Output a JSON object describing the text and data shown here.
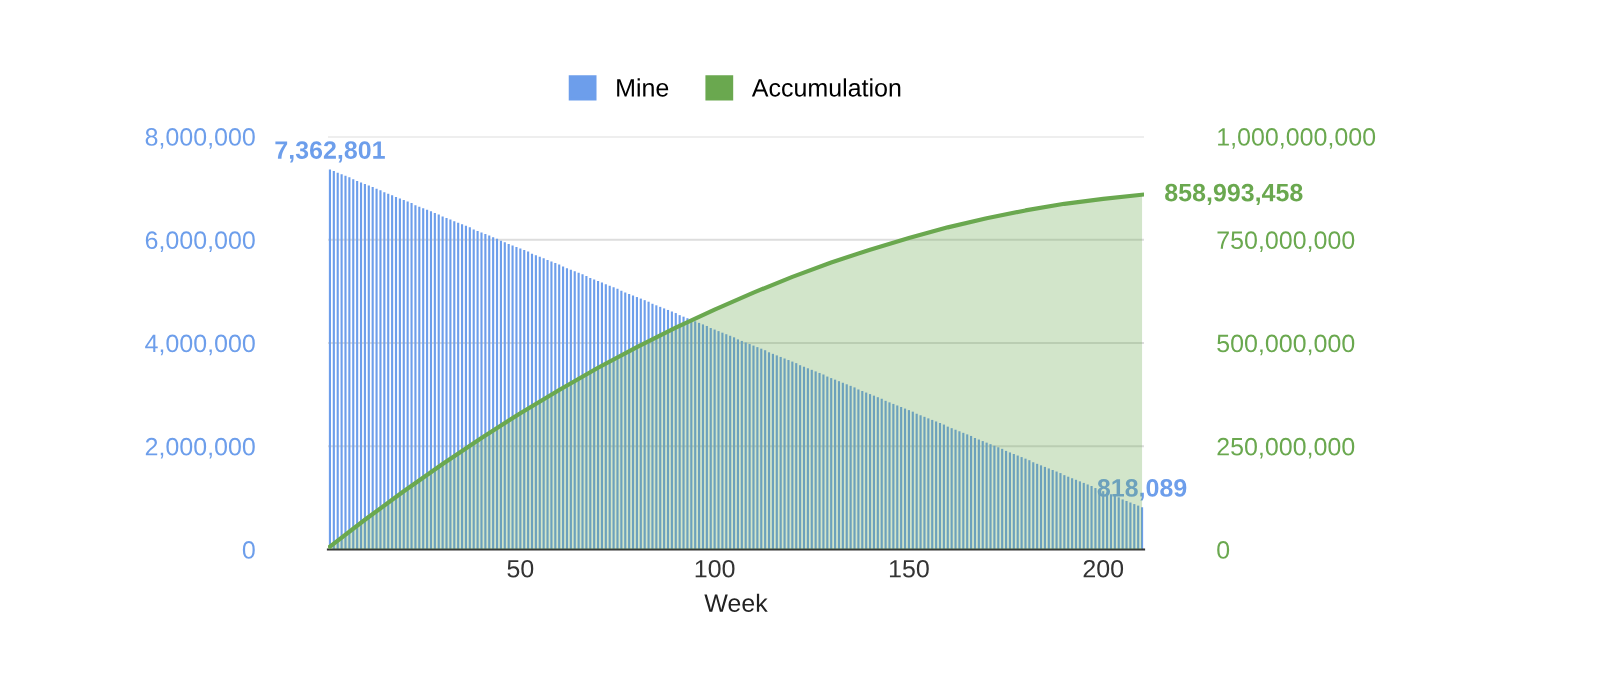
{
  "chart_data": {
    "type": "bar",
    "xlabel": "Week",
    "legend": "top",
    "grid": "y",
    "xlim": [
      0.5,
      210.5
    ],
    "xticks": [
      50,
      100,
      150,
      200
    ],
    "ylim": [
      0,
      8000000
    ],
    "yticks": [
      0,
      {
        "value": 2000000,
        "label": "2,000,000"
      },
      {
        "value": 4000000,
        "label": "4,000,000"
      },
      {
        "value": 6000000,
        "label": "6,000,000"
      },
      {
        "value": 8000000,
        "label": "8,000,000"
      }
    ],
    "y2lim": [
      0,
      1000000000
    ],
    "y2ticks": [
      0,
      {
        "value": 250000000,
        "label": "250,000,000"
      },
      {
        "value": 500000000,
        "label": "500,000,000"
      },
      {
        "value": 750000000,
        "label": "750,000,000"
      },
      {
        "value": 1000000000,
        "label": "1,000,000,000"
      }
    ],
    "series": [
      {
        "name": "Mine",
        "color": "#6d9eeb",
        "x": [
          1,
          2,
          3,
          4,
          5,
          6,
          7,
          8,
          9,
          10,
          11,
          12,
          13,
          14,
          15,
          16,
          17,
          18,
          19,
          20,
          21,
          22,
          23,
          24,
          25,
          26,
          27,
          28,
          29,
          30,
          31,
          32,
          33,
          34,
          35,
          36,
          37,
          38,
          39,
          40,
          41,
          42,
          43,
          44,
          45,
          46,
          47,
          48,
          49,
          50,
          51,
          52,
          53,
          54,
          55,
          56,
          57,
          58,
          59,
          60,
          61,
          62,
          63,
          64,
          65,
          66,
          67,
          68,
          69,
          70,
          71,
          72,
          73,
          74,
          75,
          76,
          77,
          78,
          79,
          80,
          81,
          82,
          83,
          84,
          85,
          86,
          87,
          88,
          89,
          90,
          91,
          92,
          93,
          94,
          95,
          96,
          97,
          98,
          99,
          100,
          101,
          102,
          103,
          104,
          105,
          106,
          107,
          108,
          109,
          110,
          111,
          112,
          113,
          114,
          115,
          116,
          117,
          118,
          119,
          120,
          121,
          122,
          123,
          124,
          125,
          126,
          127,
          128,
          129,
          130,
          131,
          132,
          133,
          134,
          135,
          136,
          137,
          138,
          139,
          140,
          141,
          142,
          143,
          144,
          145,
          146,
          147,
          148,
          149,
          150,
          151,
          152,
          153,
          154,
          155,
          156,
          157,
          158,
          159,
          160,
          161,
          162,
          163,
          164,
          165,
          166,
          167,
          168,
          169,
          170,
          171,
          172,
          173,
          174,
          175,
          176,
          177,
          178,
          179,
          180,
          181,
          182,
          183,
          184,
          185,
          186,
          187,
          188,
          189,
          190,
          191,
          192,
          193,
          194,
          195,
          196,
          197,
          198,
          199,
          200,
          201,
          202,
          203,
          204,
          205,
          206,
          207,
          208,
          209,
          210
        ],
        "values": [
          7362801,
          7330000,
          7300000,
          7270000,
          7240000,
          7210000,
          7170000,
          7140000,
          7110000,
          7080000,
          7050000,
          7020000,
          6990000,
          6960000,
          6920000,
          6890000,
          6860000,
          6830000,
          6800000,
          6770000,
          6740000,
          6710000,
          6670000,
          6640000,
          6610000,
          6580000,
          6550000,
          6520000,
          6490000,
          6450000,
          6420000,
          6390000,
          6360000,
          6330000,
          6300000,
          6270000,
          6240000,
          6200000,
          6170000,
          6140000,
          6110000,
          6080000,
          6050000,
          6020000,
          5980000,
          5950000,
          5920000,
          5890000,
          5860000,
          5830000,
          5800000,
          5770000,
          5730000,
          5700000,
          5670000,
          5640000,
          5610000,
          5580000,
          5550000,
          5520000,
          5480000,
          5450000,
          5420000,
          5390000,
          5360000,
          5330000,
          5300000,
          5260000,
          5230000,
          5200000,
          5170000,
          5140000,
          5110000,
          5080000,
          5050000,
          5010000,
          4980000,
          4950000,
          4920000,
          4890000,
          4860000,
          4830000,
          4800000,
          4760000,
          4730000,
          4700000,
          4670000,
          4640000,
          4610000,
          4580000,
          4540000,
          4510000,
          4480000,
          4450000,
          4420000,
          4390000,
          4360000,
          4330000,
          4290000,
          4260000,
          4230000,
          4200000,
          4170000,
          4140000,
          4110000,
          4070000,
          4040000,
          4010000,
          3980000,
          3950000,
          3920000,
          3890000,
          3860000,
          3820000,
          3790000,
          3760000,
          3730000,
          3700000,
          3670000,
          3640000,
          3610000,
          3570000,
          3540000,
          3510000,
          3480000,
          3450000,
          3420000,
          3390000,
          3350000,
          3320000,
          3290000,
          3260000,
          3230000,
          3200000,
          3170000,
          3140000,
          3100000,
          3070000,
          3040000,
          3010000,
          2980000,
          2950000,
          2920000,
          2880000,
          2850000,
          2820000,
          2790000,
          2760000,
          2730000,
          2700000,
          2670000,
          2630000,
          2600000,
          2570000,
          2540000,
          2510000,
          2480000,
          2450000,
          2420000,
          2380000,
          2350000,
          2320000,
          2290000,
          2260000,
          2230000,
          2200000,
          2160000,
          2130000,
          2100000,
          2070000,
          2040000,
          2010000,
          1980000,
          1950000,
          1910000,
          1880000,
          1850000,
          1820000,
          1790000,
          1760000,
          1730000,
          1690000,
          1660000,
          1630000,
          1600000,
          1570000,
          1540000,
          1510000,
          1480000,
          1440000,
          1410000,
          1380000,
          1350000,
          1320000,
          1290000,
          1260000,
          1230000,
          1190000,
          1160000,
          1130000,
          1100000,
          1070000,
          1040000,
          1010000,
          970000,
          940000,
          910000,
          880000,
          850000,
          818089
        ],
        "value_labels": [
          "7,362,801",
          null,
          null,
          null,
          null,
          null,
          null,
          null,
          null,
          null,
          null,
          null,
          null,
          null,
          null,
          null,
          null,
          null,
          null,
          null,
          null,
          null,
          null,
          null,
          null,
          null,
          null,
          null,
          null,
          null,
          null,
          null,
          null,
          null,
          null,
          null,
          null,
          null,
          null,
          null,
          null,
          null,
          null,
          null,
          null,
          null,
          null,
          null,
          null,
          null,
          null,
          null,
          null,
          null,
          null,
          null,
          null,
          null,
          null,
          null,
          null,
          null,
          null,
          null,
          null,
          null,
          null,
          null,
          null,
          null,
          null,
          null,
          null,
          null,
          null,
          null,
          null,
          null,
          null,
          null,
          null,
          null,
          null,
          null,
          null,
          null,
          null,
          null,
          null,
          null,
          null,
          null,
          null,
          null,
          null,
          null,
          null,
          null,
          null,
          null,
          null,
          null,
          null,
          null,
          null,
          null,
          null,
          null,
          null,
          null,
          null,
          null,
          null,
          null,
          null,
          null,
          null,
          null,
          null,
          null,
          null,
          null,
          null,
          null,
          null,
          null,
          null,
          null,
          null,
          null,
          null,
          null,
          null,
          null,
          null,
          null,
          null,
          null,
          null,
          null,
          null,
          null,
          null,
          null,
          null,
          null,
          null,
          null,
          null,
          null,
          null,
          null,
          null,
          null,
          null,
          null,
          null,
          null,
          null,
          null,
          null,
          null,
          null,
          null,
          null,
          null,
          null,
          null,
          null,
          null,
          null,
          null,
          null,
          null,
          null,
          null,
          null,
          null,
          null,
          null,
          null,
          null,
          null,
          null,
          null,
          null,
          null,
          null,
          null,
          null,
          null,
          null,
          null,
          null,
          null,
          null,
          null,
          null,
          null,
          null,
          null,
          null,
          null,
          null,
          null,
          null,
          null,
          null,
          null,
          "818,089"
        ]
      },
      {
        "name": "Accumulation",
        "type": "area",
        "axis": "y2",
        "color": "#6aa84f",
        "x": [
          1,
          10,
          20,
          30,
          40,
          50,
          60,
          70,
          80,
          90,
          100,
          110,
          120,
          130,
          140,
          150,
          160,
          170,
          180,
          190,
          200,
          210
        ],
        "values": [
          7000000,
          72000000,
          141000000,
          207000000,
          270000000,
          330000000,
          386000000,
          440000000,
          490000000,
          537000000,
          581000000,
          622000000,
          660000000,
          695000000,
          726000000,
          754000000,
          780000000,
          802000000,
          821000000,
          837000000,
          849000000,
          858993458
        ],
        "value_labels": [
          null,
          null,
          null,
          null,
          null,
          null,
          null,
          null,
          null,
          null,
          null,
          null,
          null,
          null,
          null,
          null,
          null,
          null,
          null,
          null,
          null,
          "858,993,458"
        ]
      }
    ]
  }
}
